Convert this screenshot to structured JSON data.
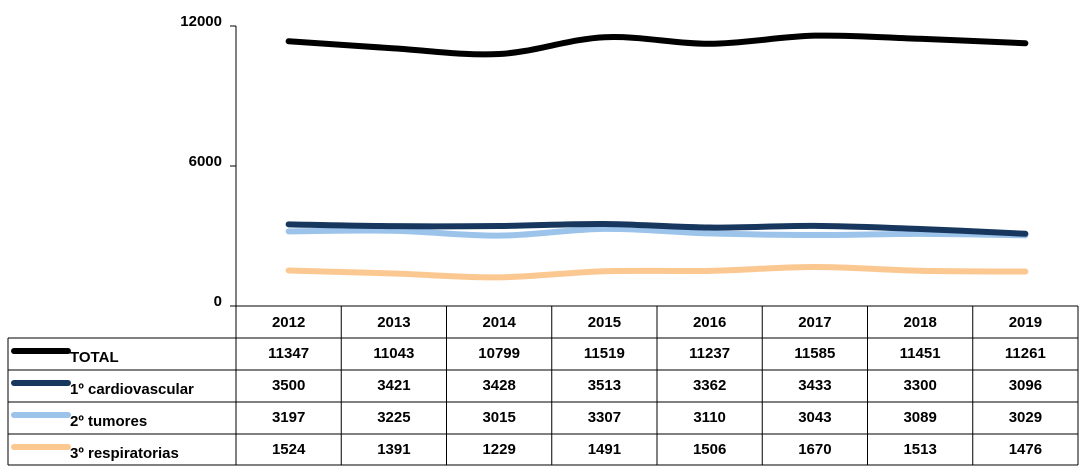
{
  "chart_data": {
    "type": "line",
    "categories": [
      "2012",
      "2013",
      "2014",
      "2015",
      "2016",
      "2017",
      "2018",
      "2019"
    ],
    "series": [
      {
        "name": "TOTAL",
        "color": "#000000",
        "values": [
          11347,
          11043,
          10799,
          11519,
          11237,
          11585,
          11451,
          11261
        ]
      },
      {
        "name": "1º cardiovascular",
        "color": "#17375e",
        "values": [
          3500,
          3421,
          3428,
          3513,
          3362,
          3433,
          3300,
          3096
        ]
      },
      {
        "name": "2º tumores",
        "color": "#9cc3ea",
        "values": [
          3197,
          3225,
          3015,
          3307,
          3110,
          3043,
          3089,
          3029
        ]
      },
      {
        "name": "3º respiratorias",
        "color": "#fbc891",
        "values": [
          1524,
          1391,
          1229,
          1491,
          1506,
          1670,
          1513,
          1476
        ]
      }
    ],
    "ylim": [
      0,
      12000
    ],
    "yticks": [
      0,
      6000,
      12000
    ]
  }
}
